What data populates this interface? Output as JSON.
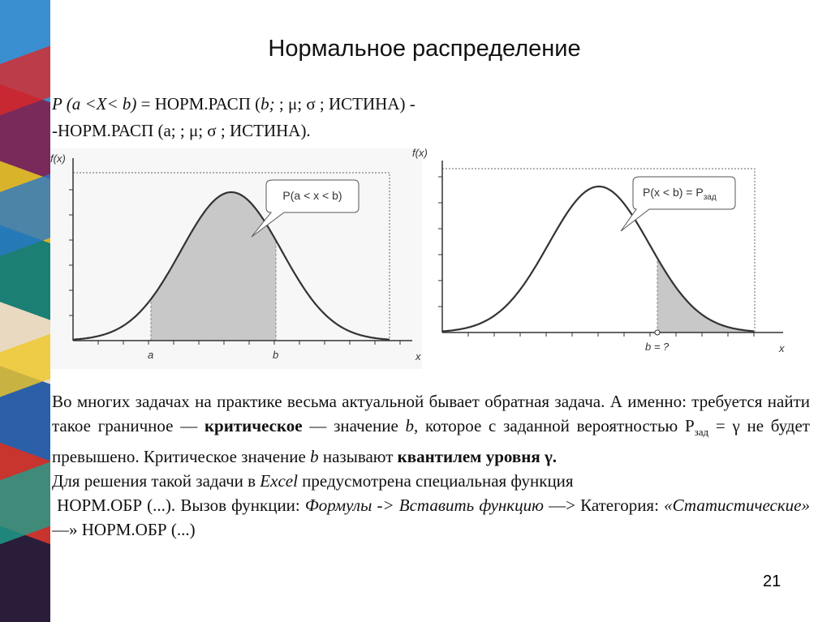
{
  "title": "Нормальное распределение",
  "formula": {
    "line1": [
      "P (a <X< b)",
      " = НОРМ.РАСП (",
      "b;",
      " ; μ; σ ; ИСТИНА) -"
    ],
    "line2": "-НОРМ.РАСП (а; ; μ; σ ; ИСТИНА)."
  },
  "figures": [
    {
      "y_label": "f(x)",
      "callout": "P(a < x < b)",
      "x_marks": [
        "a",
        "b"
      ],
      "x_label": "x"
    },
    {
      "y_label": "f(x)",
      "callout": "P(x < b) = P",
      "callout_sub": "зад",
      "x_marks": [
        "b = ?"
      ],
      "x_label": "x"
    }
  ],
  "paragraphs": [
    [
      "Во многих задачах на практике весьма актуальной бывает обратная задача. А именно: требуется найти такое граничное — ",
      "критическое",
      " — значение ",
      "b",
      ", которое с заданной вероятностью Р",
      "зад",
      " = γ не будет превышено. Критическое значение ",
      "b",
      " называют ",
      "квантилем уровня γ."
    ],
    [
      "Для решения такой задачи в ",
      "Excel",
      " предусмотрена специальная функция"
    ],
    [
      " НОРМ.ОБР (...). Вызов функции: ",
      "Формулы -> Вставить функцию",
      " —> Категория: ",
      "«Статистические»",
      " —» НОРМ.ОБР (...)"
    ]
  ],
  "page_number": "21"
}
